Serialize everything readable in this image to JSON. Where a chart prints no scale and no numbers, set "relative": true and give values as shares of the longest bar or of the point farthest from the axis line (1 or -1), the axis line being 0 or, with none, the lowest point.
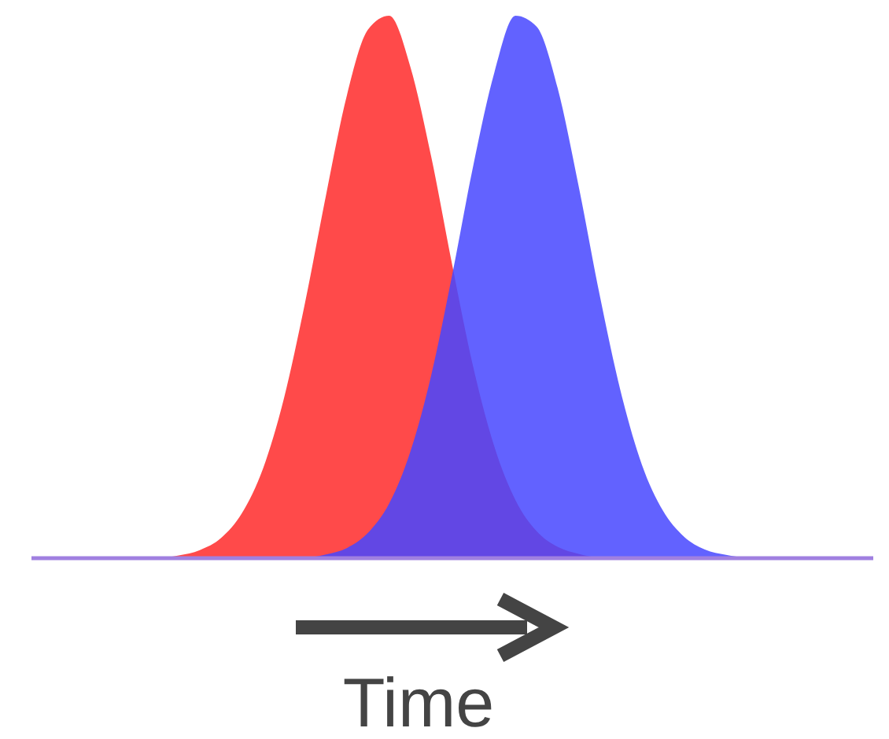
{
  "chart_data": {
    "type": "area",
    "relative": true,
    "xlabel": "Time",
    "categories": [
      null,
      null,
      null,
      null,
      null,
      null,
      null,
      null,
      null,
      null,
      null,
      null,
      null,
      null,
      null,
      null,
      null,
      null,
      null,
      null,
      null,
      null,
      null,
      null,
      null,
      null,
      null,
      null,
      null,
      null,
      null,
      null,
      null,
      null,
      null,
      null,
      null,
      null,
      null,
      null,
      null
    ],
    "series": [
      {
        "color": "#ff4a4a",
        "values": [
          null,
          null,
          null,
          null,
          null,
          null,
          0,
          0.005,
          0.015,
          0.037,
          0.083,
          0.165,
          0.295,
          0.471,
          0.67,
          0.855,
          0.975,
          1,
          0.906,
          0.739,
          0.539,
          0.351,
          0.205,
          0.107,
          0.05,
          0.021,
          0.008,
          0,
          null,
          null,
          null,
          null,
          null,
          null,
          null,
          null,
          null,
          null,
          null,
          null,
          null
        ]
      },
      {
        "color": "#4646ff",
        "values": [
          null,
          null,
          null,
          null,
          null,
          null,
          null,
          null,
          null,
          null,
          null,
          null,
          null,
          0,
          0.007,
          0.019,
          0.047,
          0.101,
          0.196,
          0.338,
          0.524,
          0.725,
          0.896,
          1,
          0.98,
          0.867,
          0.686,
          0.485,
          0.307,
          0.173,
          0.088,
          0.04,
          0.016,
          0.006,
          0,
          null,
          null,
          null,
          null,
          null,
          null
        ]
      }
    ]
  }
}
